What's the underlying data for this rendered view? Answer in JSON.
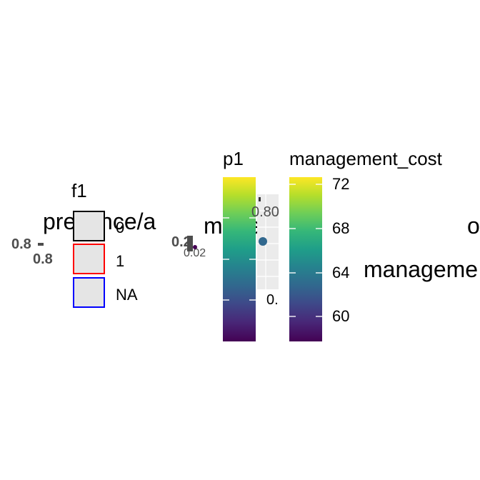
{
  "legend_fill": {
    "title": "f1",
    "items": [
      {
        "label": "0",
        "border": "#000000"
      },
      {
        "label": "1",
        "border": "#ff0000"
      },
      {
        "label": "NA",
        "border": "#0000ff"
      }
    ],
    "swatch_fill": "#e5e5e5"
  },
  "legend_p1": {
    "title": "p1"
  },
  "legend_cost": {
    "title": "management_cost",
    "ticks": [
      "72",
      "68",
      "64",
      "60"
    ]
  },
  "overflow_labels": {
    "presence": "presence/a",
    "mode": "mode",
    "management": "manageme",
    "edge_o": "o"
  },
  "fragments": {
    "left_ticks_a": "0.8",
    "left_ticks_b": "0.8",
    "mid_ticks": "0.2",
    "mid_small": "0.02",
    "inner_top": "0.80",
    "inner_bottom": "0."
  },
  "colors": {
    "viridis": [
      "#fde725",
      "#b5de2b",
      "#6ece58",
      "#35b779",
      "#1f9e89",
      "#26828e",
      "#31688e",
      "#3e4989",
      "#482878",
      "#440154"
    ],
    "point": "#31688e"
  },
  "chart_data": [
    {
      "type": "legend",
      "title": "f1",
      "entries": [
        "0",
        "1",
        "NA"
      ]
    },
    {
      "type": "colorbar",
      "title": "p1",
      "ticks": []
    },
    {
      "type": "colorbar",
      "title": "management_cost",
      "ticks": [
        72,
        68,
        64,
        60
      ],
      "range": [
        58,
        73
      ]
    }
  ]
}
